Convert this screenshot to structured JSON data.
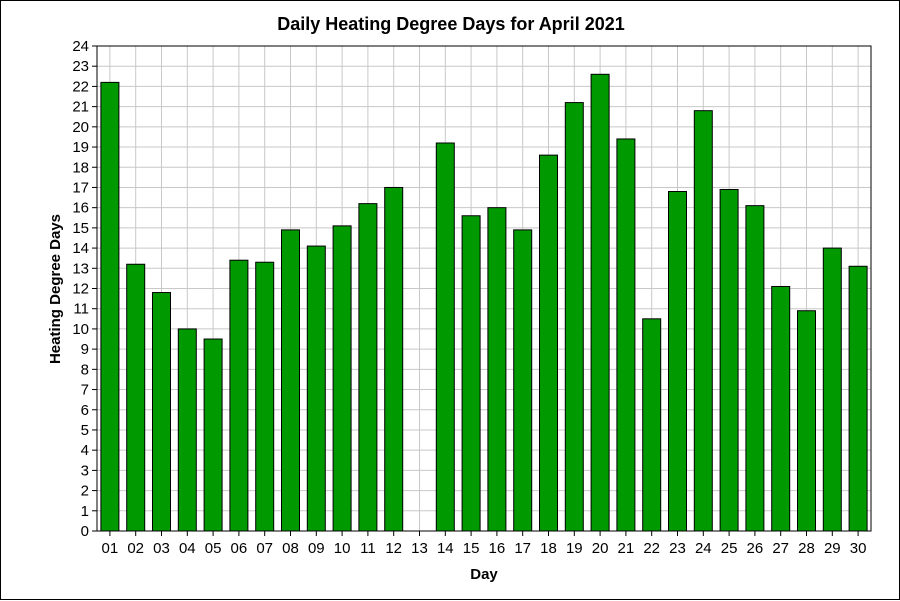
{
  "chart_data": {
    "type": "bar",
    "title": "Daily Heating Degree Days for April 2021",
    "xlabel": "Day",
    "ylabel": "Heating Degree Days",
    "ylim": [
      0,
      24
    ],
    "yticks": [
      0,
      1,
      2,
      3,
      4,
      5,
      6,
      7,
      8,
      9,
      10,
      11,
      12,
      13,
      14,
      15,
      16,
      17,
      18,
      19,
      20,
      21,
      22,
      23,
      24
    ],
    "grid": true,
    "categories": [
      "01",
      "02",
      "03",
      "04",
      "05",
      "06",
      "07",
      "08",
      "09",
      "10",
      "11",
      "12",
      "13",
      "14",
      "15",
      "16",
      "17",
      "18",
      "19",
      "20",
      "21",
      "22",
      "23",
      "24",
      "25",
      "26",
      "27",
      "28",
      "29",
      "30"
    ],
    "values": [
      22.2,
      13.2,
      11.8,
      10.0,
      9.5,
      13.4,
      13.3,
      14.9,
      14.1,
      15.1,
      16.2,
      17.0,
      null,
      19.2,
      15.6,
      16.0,
      14.9,
      18.6,
      21.2,
      22.6,
      19.4,
      10.5,
      16.8,
      20.8,
      16.9,
      16.1,
      12.1,
      10.9,
      14.0,
      13.1
    ],
    "bar_color": "#009900",
    "bar_edge_color": "#000000",
    "grid_color": "#c8c8c8"
  }
}
